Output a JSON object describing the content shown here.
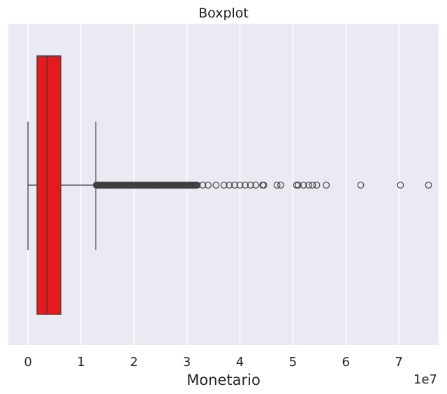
{
  "chart_data": {
    "type": "boxplot",
    "orientation": "horizontal",
    "title": "Boxplot",
    "xlabel": "Monetario",
    "ylabel": "",
    "axis_multiplier": "1e7",
    "xlim": [
      -0.37,
      7.75
    ],
    "x_ticks": [
      0,
      1,
      2,
      3,
      4,
      5,
      6,
      7
    ],
    "x_tick_labels": [
      "0",
      "1",
      "2",
      "3",
      "4",
      "5",
      "6",
      "7"
    ],
    "grid": true,
    "box": {
      "whisker_low": 0.0,
      "q1": 0.17,
      "median": 0.36,
      "q3": 0.62,
      "whisker_high": 1.28,
      "color": "#e41a1c"
    },
    "outlier_band": [
      1.29,
      3.2
    ],
    "outliers": [
      3.3,
      3.4,
      3.55,
      3.7,
      3.8,
      3.9,
      4.0,
      4.1,
      4.2,
      4.3,
      4.43,
      4.45,
      4.7,
      4.77,
      5.07,
      5.1,
      5.2,
      5.3,
      5.37,
      5.45,
      5.63,
      6.28,
      7.03,
      7.56
    ]
  }
}
